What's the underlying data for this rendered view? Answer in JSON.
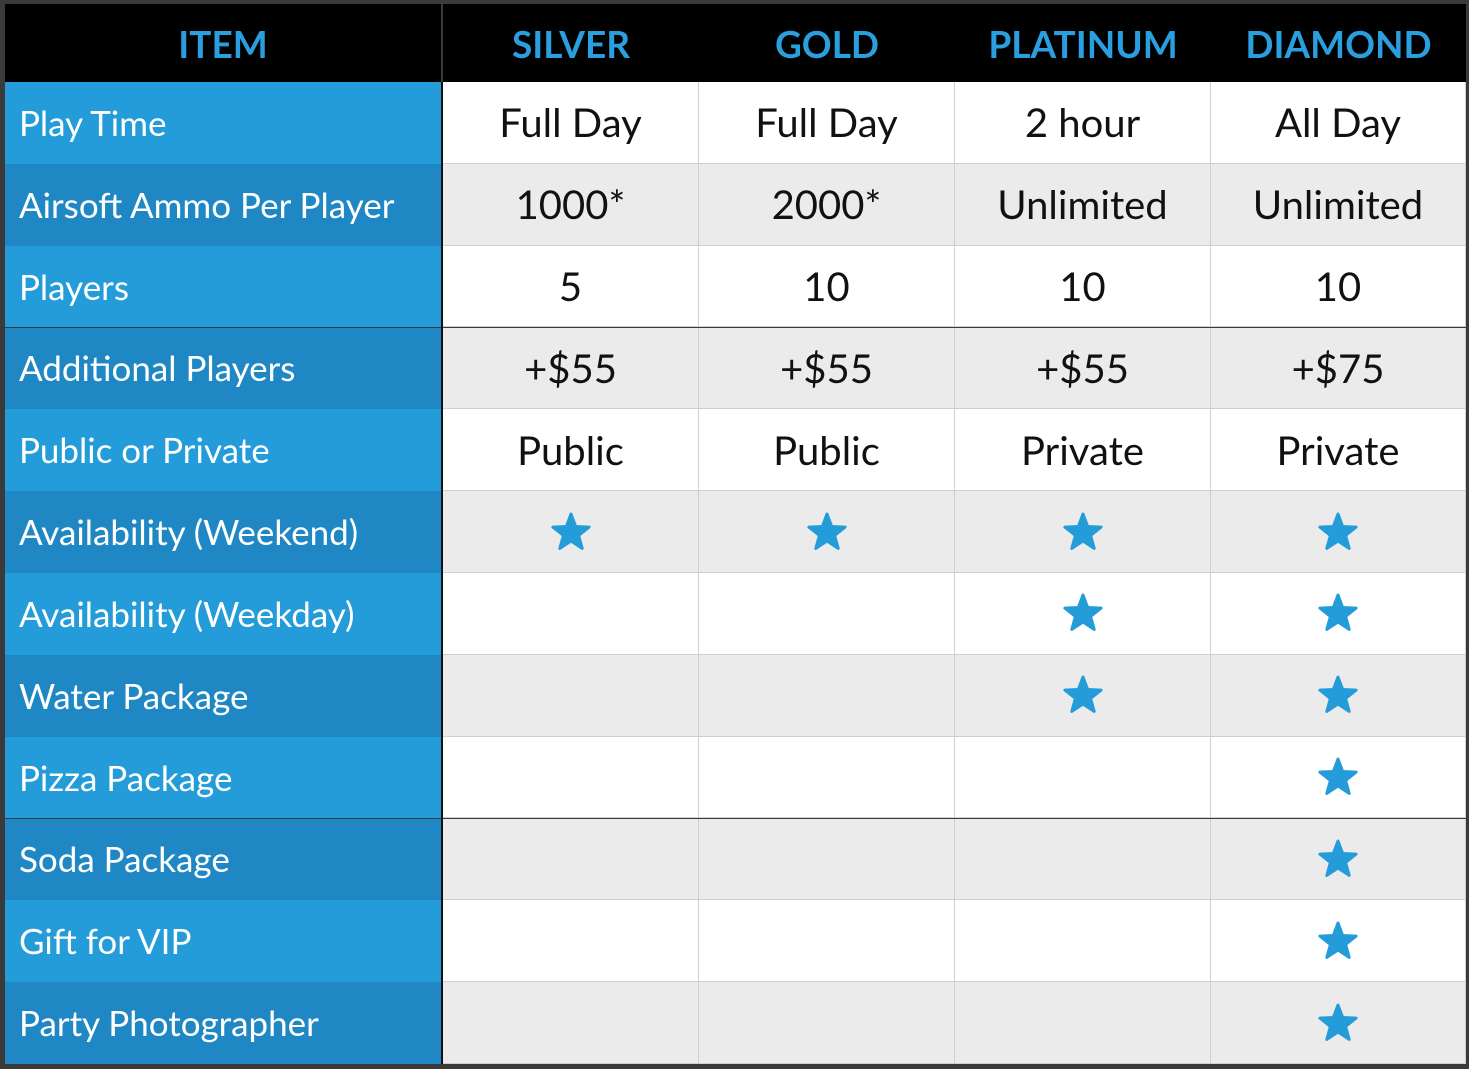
{
  "table": {
    "header": [
      "ITEM",
      "SILVER",
      "GOLD",
      "PLATINUM",
      "DIAMOND"
    ],
    "rows": [
      {
        "label": "Play Time",
        "cells": [
          "Full Day",
          "Full Day",
          "2 hour",
          "All Day"
        ]
      },
      {
        "label": "Airsoft Ammo Per Player",
        "cells": [
          "1000*",
          "2000*",
          "Unlimited",
          "Unlimited"
        ]
      },
      {
        "label": "Players",
        "cells": [
          5,
          10,
          10,
          10
        ]
      },
      {
        "label": "Additional Players",
        "cells": [
          "+$55",
          "+$55",
          "+$55",
          "+$75"
        ]
      },
      {
        "label": "Public or Private",
        "cells": [
          "Public",
          "Public",
          "Private",
          "Private"
        ]
      },
      {
        "label": "Availability (Weekend)",
        "cells": [
          true,
          true,
          true,
          true
        ]
      },
      {
        "label": "Availability (Weekday)",
        "cells": [
          false,
          false,
          true,
          true
        ]
      },
      {
        "label": "Water Package",
        "cells": [
          false,
          false,
          true,
          true
        ]
      },
      {
        "label": "Pizza Package",
        "cells": [
          false,
          false,
          false,
          true
        ]
      },
      {
        "label": "Soda Package",
        "cells": [
          false,
          false,
          false,
          true
        ]
      },
      {
        "label": "Gift for VIP",
        "cells": [
          false,
          false,
          false,
          true
        ]
      },
      {
        "label": "Party Photographer",
        "cells": [
          false,
          false,
          false,
          true
        ]
      }
    ]
  }
}
